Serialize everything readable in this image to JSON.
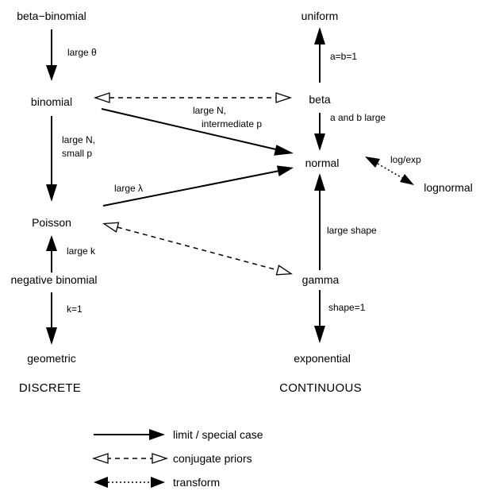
{
  "nodes": {
    "beta_binomial": "beta−binomial",
    "binomial": "binomial",
    "poisson": "Poisson",
    "negative_binomial": "negative binomial",
    "geometric": "geometric",
    "uniform": "uniform",
    "beta": "beta",
    "normal": "normal",
    "lognormal": "lognormal",
    "gamma": "gamma",
    "exponential": "exponential"
  },
  "edge_labels": {
    "large_theta": "large θ",
    "large_n_small_p_1": "large N,",
    "large_n_small_p_2": "small p",
    "large_k": "large k",
    "k1": "k=1",
    "ab1": "a=b=1",
    "ab_large": "a and b large",
    "large_n_inter_1": "large N,",
    "large_n_inter_2": "intermediate p",
    "large_lambda": "large λ",
    "log_exp": "log/exp",
    "large_shape": "large shape",
    "shape1": "shape=1"
  },
  "categories": {
    "discrete": "DISCRETE",
    "continuous": "CONTINUOUS"
  },
  "legend": {
    "limit": "limit / special case",
    "conjugate": "conjugate priors",
    "transform": "transform"
  }
}
